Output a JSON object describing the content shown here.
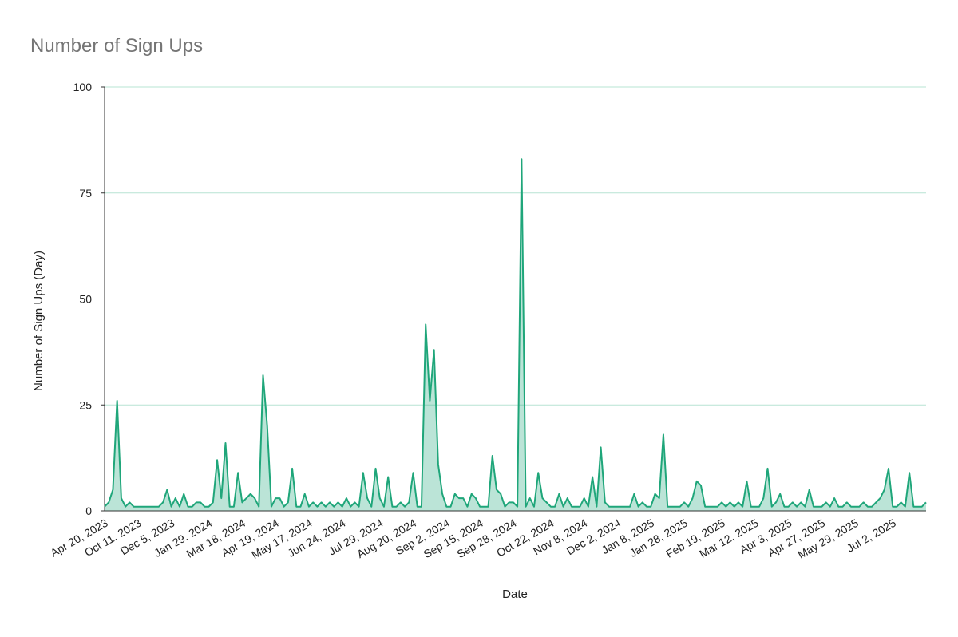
{
  "chart_data": {
    "type": "area",
    "title": "Number of Sign Ups",
    "x_label": "Date",
    "y_label": "Number of Sign Ups (Day)",
    "categories": [
      null,
      "Apr 20, 2023",
      null,
      null,
      null,
      null,
      null,
      null,
      null,
      "Oct 11, 2023",
      null,
      null,
      null,
      null,
      null,
      null,
      null,
      "Dec 5, 2023",
      null,
      null,
      null,
      null,
      null,
      null,
      null,
      null,
      "Jan 29, 2024",
      null,
      null,
      null,
      null,
      null,
      null,
      null,
      "Mar 18, 2024",
      null,
      null,
      null,
      null,
      null,
      null,
      null,
      "Apr 19, 2024",
      null,
      null,
      null,
      null,
      null,
      null,
      null,
      "May 17, 2024",
      null,
      null,
      null,
      null,
      null,
      null,
      null,
      "Jun 24, 2024",
      null,
      null,
      null,
      null,
      null,
      null,
      null,
      null,
      "Jul 29, 2024",
      null,
      null,
      null,
      null,
      null,
      null,
      null,
      "Aug 20, 2024",
      null,
      null,
      null,
      null,
      null,
      null,
      null,
      "Sep 2, 2024",
      null,
      null,
      null,
      null,
      null,
      null,
      null,
      "Sep 15, 2024",
      null,
      null,
      null,
      null,
      null,
      null,
      null,
      "Sep 28, 2024",
      null,
      null,
      null,
      null,
      null,
      null,
      null,
      null,
      "Oct 22, 2024",
      null,
      null,
      null,
      null,
      null,
      null,
      null,
      "Nov 8, 2024",
      null,
      null,
      null,
      null,
      null,
      null,
      null,
      "Dec 2, 2024",
      null,
      null,
      null,
      null,
      null,
      null,
      null,
      "Jan 8, 2025",
      null,
      null,
      null,
      null,
      null,
      null,
      null,
      "Jan 28, 2025",
      null,
      null,
      null,
      null,
      null,
      null,
      null,
      null,
      "Feb 19, 2025",
      null,
      null,
      null,
      null,
      null,
      null,
      null,
      "Mar 12, 2025",
      null,
      null,
      null,
      null,
      null,
      null,
      null,
      "Apr 3, 2025",
      null,
      null,
      null,
      null,
      null,
      null,
      null,
      "Apr 27, 2025",
      null,
      null,
      null,
      null,
      null,
      null,
      null,
      "May 29, 2025",
      null,
      null,
      null,
      null,
      null,
      null,
      null,
      null,
      "Jul 2, 2025",
      null,
      null,
      null,
      null,
      null,
      null,
      null
    ],
    "values": [
      1,
      2,
      5,
      26,
      3,
      1,
      2,
      1,
      1,
      1,
      1,
      1,
      1,
      1,
      2,
      5,
      1,
      3,
      1,
      4,
      1,
      1,
      2,
      2,
      1,
      1,
      2,
      12,
      3,
      16,
      1,
      1,
      9,
      2,
      3,
      4,
      3,
      1,
      32,
      20,
      1,
      3,
      3,
      1,
      2,
      10,
      1,
      1,
      4,
      1,
      2,
      1,
      2,
      1,
      2,
      1,
      2,
      1,
      3,
      1,
      2,
      1,
      9,
      3,
      1,
      10,
      3,
      1,
      8,
      1,
      1,
      2,
      1,
      2,
      9,
      1,
      1,
      44,
      26,
      38,
      11,
      4,
      1,
      1,
      4,
      3,
      3,
      1,
      4,
      3,
      1,
      1,
      1,
      13,
      5,
      4,
      1,
      2,
      2,
      1,
      83,
      1,
      3,
      1,
      9,
      3,
      2,
      1,
      1,
      4,
      1,
      3,
      1,
      1,
      1,
      3,
      1,
      8,
      1,
      15,
      2,
      1,
      1,
      1,
      1,
      1,
      1,
      4,
      1,
      2,
      1,
      1,
      4,
      3,
      18,
      1,
      1,
      1,
      1,
      2,
      1,
      3,
      7,
      6,
      1,
      1,
      1,
      1,
      2,
      1,
      2,
      1,
      2,
      1,
      7,
      1,
      1,
      1,
      3,
      10,
      1,
      2,
      4,
      1,
      1,
      2,
      1,
      2,
      1,
      5,
      1,
      1,
      1,
      2,
      1,
      3,
      1,
      1,
      2,
      1,
      1,
      1,
      2,
      1,
      1,
      2,
      3,
      5,
      10,
      1,
      1,
      2,
      1,
      9,
      1,
      1,
      1,
      2
    ],
    "color": "#1fa67a",
    "ylim": [
      0,
      100
    ],
    "yticks": [
      0,
      25,
      50,
      75,
      100
    ],
    "grid": true
  }
}
